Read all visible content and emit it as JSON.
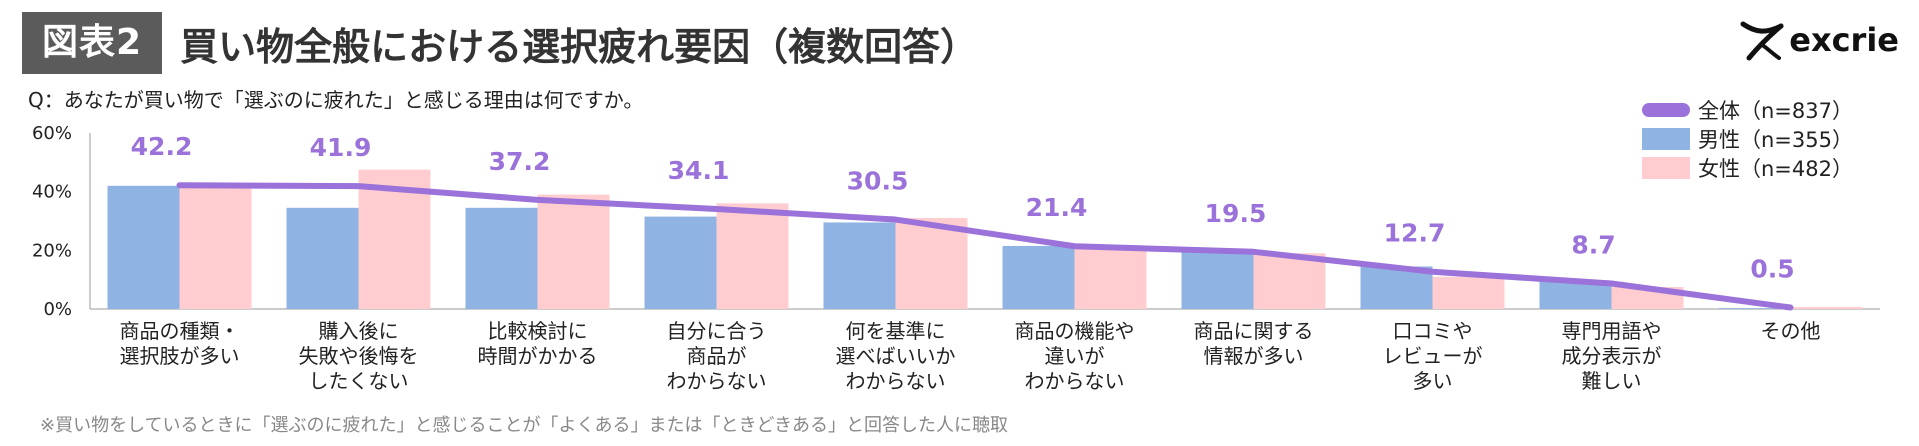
{
  "header": {
    "badge": "図表2",
    "title": "買い物全般における選択疲れ要因（複数回答）"
  },
  "logo": {
    "text": "excrie"
  },
  "question": "Q：あなたが買い物で「選ぶのに疲れた」と感じる理由は何ですか。",
  "footnote": "※買い物をしているときに「選ぶのに疲れた」と感じることが「よくある」または「ときどきある」と回答した人に聴取",
  "legend": [
    {
      "label": "全体（n=837）"
    },
    {
      "label": "男性（n=355）"
    },
    {
      "label": "女性（n=482）"
    }
  ],
  "colors": {
    "total": "#9b72d9",
    "male": "#8fb4e3",
    "female": "#ffcccf",
    "axis": "#999999",
    "total_label": "#9b72d9"
  },
  "chart_data": {
    "type": "bar",
    "categories": [
      [
        "商品の種類・",
        "選択肢が多い"
      ],
      [
        "購入後に",
        "失敗や後悔を",
        "したくない"
      ],
      [
        "比較検討に",
        "時間がかかる"
      ],
      [
        "自分に合う",
        "商品が",
        "わからない"
      ],
      [
        "何を基準に",
        "選べばいいか",
        "わからない"
      ],
      [
        "商品の機能や",
        "違いが",
        "わからない"
      ],
      [
        "商品に関する",
        "情報が多い"
      ],
      [
        "口コミや",
        "レビューが",
        "多い"
      ],
      [
        "専門用語や",
        "成分表示が",
        "難しい"
      ],
      [
        "その他"
      ]
    ],
    "series": [
      {
        "name": "男性（n=355）",
        "kind": "bar",
        "values": [
          42.0,
          34.5,
          34.5,
          31.5,
          29.5,
          21.5,
          19.5,
          14.5,
          9.5,
          0.3
        ]
      },
      {
        "name": "女性（n=482）",
        "kind": "bar",
        "values": [
          42.0,
          47.5,
          39.0,
          36.0,
          31.0,
          21.0,
          19.0,
          11.0,
          7.5,
          0.7
        ]
      },
      {
        "name": "全体（n=837）",
        "kind": "line",
        "values": [
          42.2,
          41.9,
          37.2,
          34.1,
          30.5,
          21.4,
          19.5,
          12.7,
          8.7,
          0.5
        ],
        "labels": [
          "42.2",
          "41.9",
          "37.2",
          "34.1",
          "30.5",
          "21.4",
          "19.5",
          "12.7",
          "8.7",
          "0.5"
        ]
      }
    ],
    "yticks": [
      "0%",
      "20%",
      "40%",
      "60%"
    ],
    "ylim": [
      0,
      60
    ],
    "xlabel": "",
    "ylabel": "",
    "legend_position": "top-right"
  }
}
